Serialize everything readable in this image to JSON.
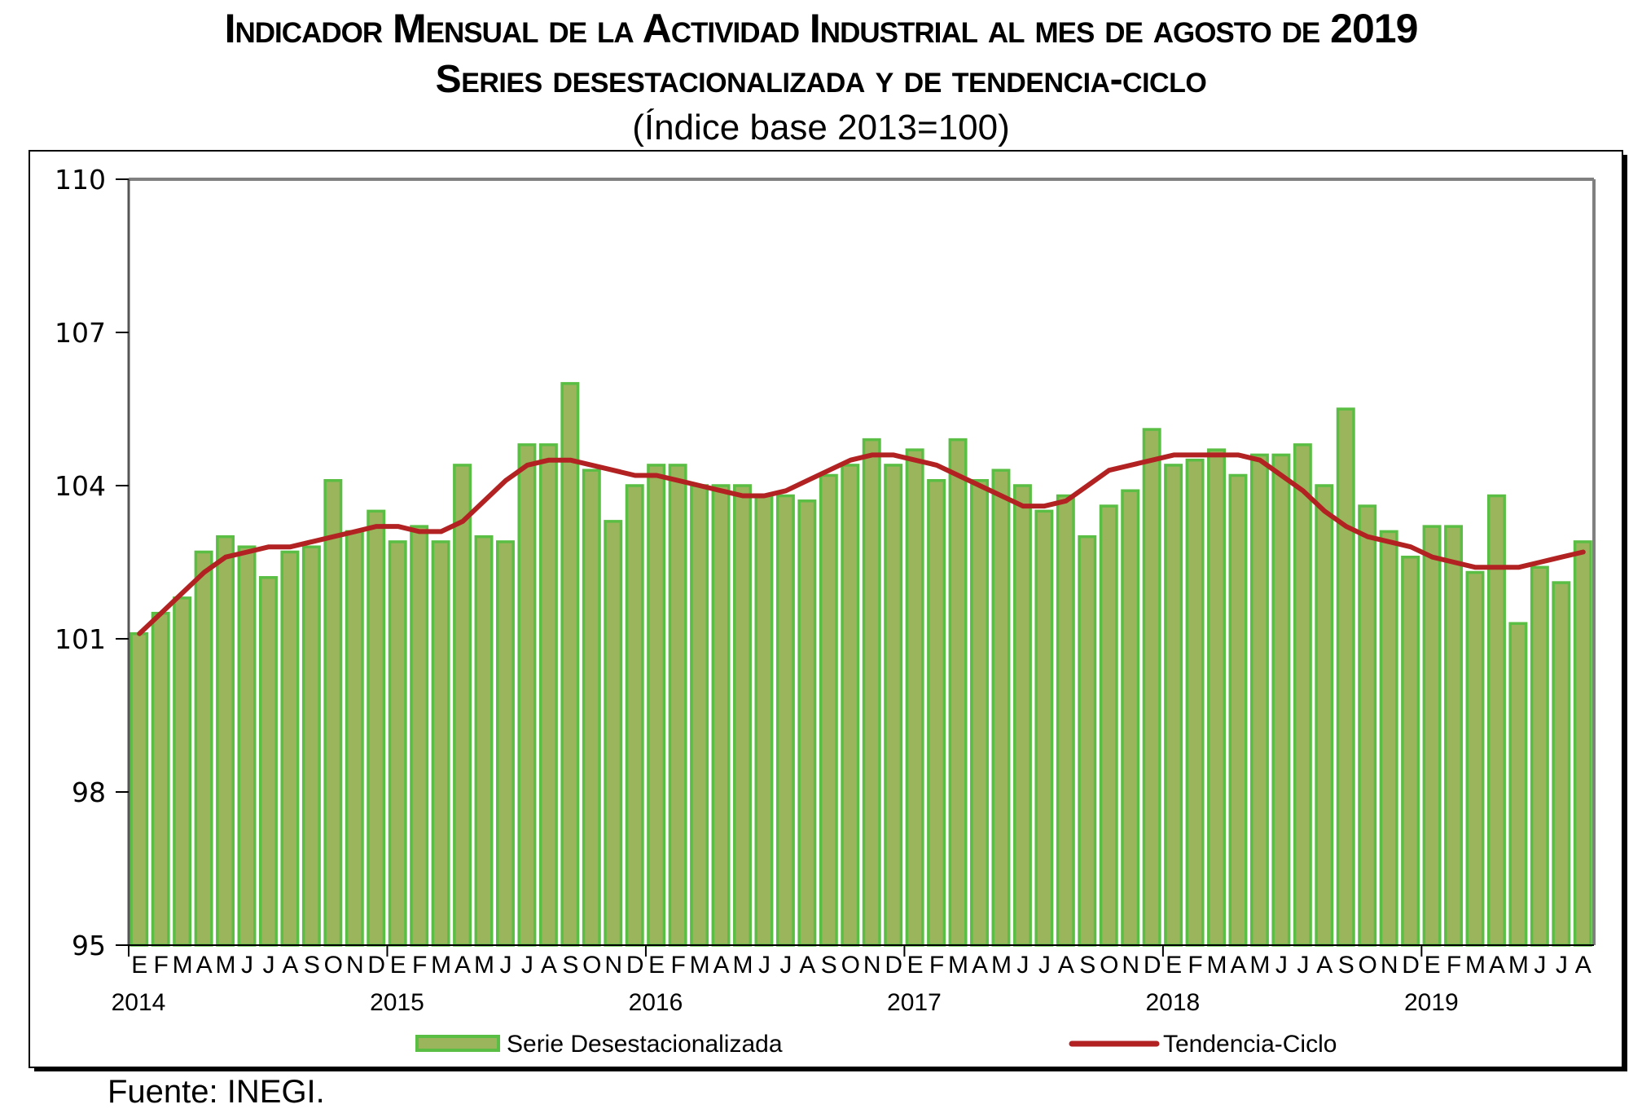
{
  "titles": {
    "line1": "Indicador Mensual de la Actividad Industrial al mes de agosto de 2019",
    "line2": "Series desestacionalizada y de tendencia-ciclo",
    "line3": "(Índice base 2013=100)"
  },
  "source": "Fuente: INEGI.",
  "colors": {
    "bar_fill": "#9BB55C",
    "bar_stroke": "#5BBE44",
    "trend": "#B22222",
    "axis": "#808080"
  },
  "chart_data": {
    "type": "bar",
    "title": "Indicador Mensual de la Actividad Industrial al mes de agosto de 2019",
    "subtitle": "Series desestacionalizada y de tendencia-ciclo (Índice base 2013=100)",
    "xlabel": "",
    "ylabel": "",
    "ylim": [
      95,
      110
    ],
    "yticks": [
      95,
      98,
      101,
      104,
      107,
      110
    ],
    "grid": false,
    "legend_position": "bottom",
    "month_labels": [
      "E",
      "F",
      "M",
      "A",
      "M",
      "J",
      "J",
      "A",
      "S",
      "O",
      "N",
      "D"
    ],
    "years": [
      "2014",
      "2015",
      "2016",
      "2017",
      "2018",
      "2019"
    ],
    "start": "2014-01",
    "end": "2019-08",
    "series": [
      {
        "name": "Serie Desestacionalizada",
        "type": "bar",
        "values": [
          101.1,
          101.5,
          101.8,
          102.7,
          103.0,
          102.8,
          102.2,
          102.7,
          102.8,
          104.1,
          103.1,
          103.5,
          102.9,
          103.2,
          102.9,
          104.4,
          103.0,
          102.9,
          104.8,
          104.8,
          106.0,
          104.3,
          103.3,
          104.0,
          104.4,
          104.4,
          104.0,
          104.0,
          104.0,
          103.8,
          103.8,
          103.7,
          104.2,
          104.4,
          104.9,
          104.4,
          104.7,
          104.1,
          104.9,
          104.1,
          104.3,
          104.0,
          103.5,
          103.8,
          103.0,
          103.6,
          103.9,
          105.1,
          104.4,
          104.5,
          104.7,
          104.2,
          104.6,
          104.6,
          104.8,
          104.0,
          105.5,
          103.6,
          103.1,
          102.6,
          103.2,
          103.2,
          102.3,
          103.8,
          101.3,
          102.4,
          102.1,
          102.9
        ]
      },
      {
        "name": "Tendencia-Ciclo",
        "type": "line",
        "values": [
          101.1,
          101.5,
          101.9,
          102.3,
          102.6,
          102.7,
          102.8,
          102.8,
          102.9,
          103.0,
          103.1,
          103.2,
          103.2,
          103.1,
          103.1,
          103.3,
          103.7,
          104.1,
          104.4,
          104.5,
          104.5,
          104.4,
          104.3,
          104.2,
          104.2,
          104.1,
          104.0,
          103.9,
          103.8,
          103.8,
          103.9,
          104.1,
          104.3,
          104.5,
          104.6,
          104.6,
          104.5,
          104.4,
          104.2,
          104.0,
          103.8,
          103.6,
          103.6,
          103.7,
          104.0,
          104.3,
          104.4,
          104.5,
          104.6,
          104.6,
          104.6,
          104.6,
          104.5,
          104.2,
          103.9,
          103.5,
          103.2,
          103.0,
          102.9,
          102.8,
          102.6,
          102.5,
          102.4,
          102.4,
          102.4,
          102.5,
          102.6,
          102.7
        ]
      }
    ]
  }
}
